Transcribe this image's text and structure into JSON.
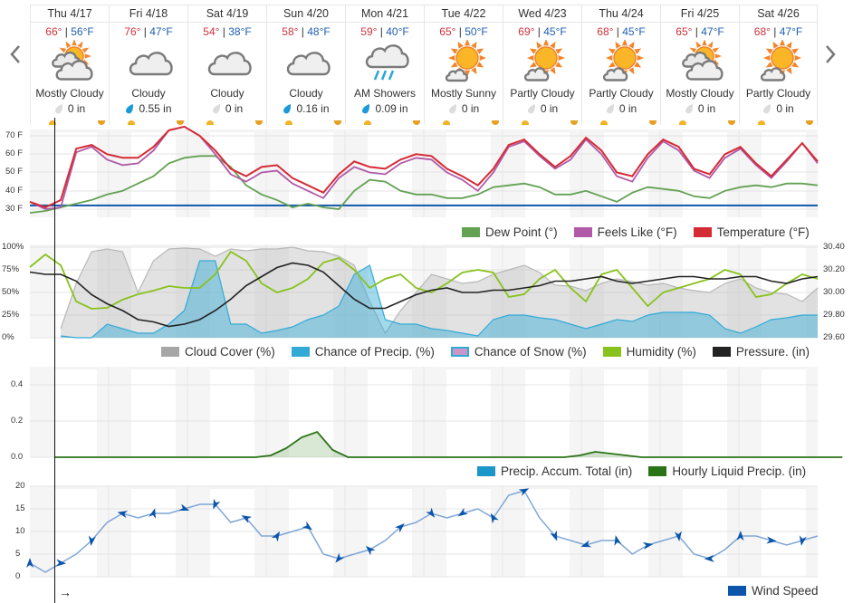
{
  "navigation": {
    "prev_icon": "chevron-left-icon",
    "next_icon": "chevron-right-icon"
  },
  "days": [
    {
      "label": "Thu 4/17",
      "hi": "66°",
      "lo": "56°F",
      "icon": "mostly-cloudy-icon",
      "condition": "Mostly Cloudy",
      "precip": "0 in",
      "precip_active": false
    },
    {
      "label": "Fri 4/18",
      "hi": "76°",
      "lo": "47°F",
      "icon": "cloudy-icon",
      "condition": "Cloudy",
      "precip": "0.55 in",
      "precip_active": true
    },
    {
      "label": "Sat 4/19",
      "hi": "54°",
      "lo": "38°F",
      "icon": "cloudy-icon",
      "condition": "Cloudy",
      "precip": "0 in",
      "precip_active": false
    },
    {
      "label": "Sun 4/20",
      "hi": "58°",
      "lo": "48°F",
      "icon": "cloudy-icon",
      "condition": "Cloudy",
      "precip": "0.16 in",
      "precip_active": true
    },
    {
      "label": "Mon 4/21",
      "hi": "59°",
      "lo": "40°F",
      "icon": "showers-icon",
      "condition": "AM Showers",
      "precip": "0.09 in",
      "precip_active": true
    },
    {
      "label": "Tue 4/22",
      "hi": "65°",
      "lo": "50°F",
      "icon": "mostly-sunny-icon",
      "condition": "Mostly Sunny",
      "precip": "0 in",
      "precip_active": false
    },
    {
      "label": "Wed 4/23",
      "hi": "69°",
      "lo": "45°F",
      "icon": "partly-cloudy-icon",
      "condition": "Partly Cloudy",
      "precip": "0 in",
      "precip_active": false
    },
    {
      "label": "Thu 4/24",
      "hi": "68°",
      "lo": "45°F",
      "icon": "partly-cloudy-icon",
      "condition": "Partly Cloudy",
      "precip": "0 in",
      "precip_active": false
    },
    {
      "label": "Fri 4/25",
      "hi": "65°",
      "lo": "47°F",
      "icon": "mostly-cloudy-icon",
      "condition": "Mostly Cloudy",
      "precip": "0 in",
      "precip_active": false
    },
    {
      "label": "Sat 4/26",
      "hi": "68°",
      "lo": "47°F",
      "icon": "partly-cloudy-icon",
      "condition": "Partly Cloudy",
      "precip": "0 in",
      "precip_active": false
    }
  ],
  "separator": " | ",
  "colors": {
    "temperature": "#d52b35",
    "feels_like": "#b05aa8",
    "dew_point": "#63a253",
    "freezing": "#1f5fb0",
    "cloud_cover": "#a6a6a6",
    "precip_chance": "#33aad6",
    "snow_chance": "#c996c9",
    "humidity": "#88c21c",
    "pressure": "#222222",
    "precip_accum": "#1a96c8",
    "hourly_precip": "#2a7316",
    "wind": "#0b55aa"
  },
  "now_arrow": "→",
  "chart_data": [
    {
      "type": "line",
      "title": "Temperature",
      "ylabel": "F",
      "yticks": [
        "70 F",
        "60 F",
        "50 F",
        "40 F",
        "30 F"
      ],
      "ylim": [
        25,
        75
      ],
      "x": "hourly, Thu 4/17 – Sat 4/26 (sampled every 6h)",
      "legend": [
        "Dew Point (°)",
        "Feels Like (°F)",
        "Temperature (°F)"
      ],
      "series": [
        {
          "name": "Temperature (°F)",
          "values": [
            34,
            31,
            35,
            63,
            65,
            60,
            58,
            58,
            64,
            73,
            75,
            70,
            62,
            52,
            48,
            53,
            54,
            47,
            43,
            39,
            49,
            56,
            53,
            52,
            57,
            60,
            59,
            52,
            48,
            43,
            52,
            65,
            68,
            60,
            53,
            59,
            69,
            62,
            50,
            48,
            60,
            68,
            64,
            52,
            49,
            60,
            64,
            55,
            48,
            57,
            66,
            56
          ]
        },
        {
          "name": "Feels Like (°F)",
          "values": [
            34,
            30,
            31,
            61,
            64,
            57,
            54,
            55,
            62,
            73,
            75,
            70,
            60,
            49,
            45,
            50,
            51,
            44,
            40,
            36,
            47,
            53,
            50,
            49,
            55,
            58,
            57,
            50,
            46,
            40,
            50,
            64,
            67,
            59,
            52,
            57,
            68,
            60,
            48,
            45,
            58,
            67,
            62,
            51,
            47,
            58,
            63,
            54,
            47,
            56,
            66,
            55
          ]
        },
        {
          "name": "Dew Point (°)",
          "values": [
            28,
            29,
            31,
            33,
            35,
            38,
            40,
            44,
            48,
            55,
            58,
            59,
            59,
            53,
            43,
            38,
            35,
            31,
            33,
            31,
            30,
            40,
            46,
            45,
            40,
            38,
            38,
            36,
            36,
            38,
            42,
            43,
            44,
            42,
            38,
            38,
            40,
            37,
            34,
            39,
            42,
            41,
            40,
            37,
            36,
            40,
            42,
            43,
            42,
            44,
            44,
            43
          ]
        },
        {
          "name": "Freezing (32°F)",
          "values": [
            32
          ]
        }
      ]
    },
    {
      "type": "area",
      "title": "Cloud / Precip / Humidity / Pressure",
      "yticks_left": [
        "100%",
        "75%",
        "50%",
        "25%",
        "0%"
      ],
      "yticks_right": [
        "30.40",
        "30.20",
        "30.00",
        "29.80",
        "29.60"
      ],
      "ylim_left": [
        0,
        100
      ],
      "ylim_right": [
        29.6,
        30.4
      ],
      "legend": [
        "Cloud Cover (%)",
        "Chance of Precip. (%)",
        "Chance of Snow (%)",
        "Humidity (%)",
        "Pressure. (in)"
      ],
      "series": [
        {
          "name": "Cloud Cover (%)",
          "values": [
            0,
            0,
            10,
            60,
            95,
            98,
            95,
            50,
            85,
            98,
            99,
            98,
            90,
            98,
            96,
            98,
            98,
            100,
            96,
            95,
            90,
            80,
            40,
            5,
            30,
            50,
            70,
            65,
            60,
            62,
            70,
            75,
            80,
            72,
            58,
            57,
            52,
            60,
            65,
            62,
            58,
            60,
            55,
            52,
            50,
            60,
            65,
            55,
            50,
            48,
            40,
            55
          ]
        },
        {
          "name": "Chance of Precip. (%)",
          "values": [
            0,
            0,
            2,
            0,
            0,
            15,
            10,
            5,
            5,
            15,
            30,
            85,
            85,
            15,
            15,
            5,
            8,
            12,
            20,
            25,
            35,
            70,
            80,
            20,
            15,
            15,
            10,
            8,
            5,
            2,
            20,
            25,
            25,
            22,
            20,
            15,
            10,
            15,
            20,
            18,
            25,
            28,
            28,
            28,
            25,
            10,
            5,
            12,
            20,
            22,
            25,
            25
          ]
        },
        {
          "name": "Humidity (%)",
          "values": [
            78,
            92,
            80,
            40,
            32,
            33,
            42,
            48,
            52,
            57,
            55,
            55,
            70,
            95,
            85,
            60,
            50,
            55,
            65,
            83,
            88,
            75,
            55,
            65,
            70,
            55,
            50,
            60,
            72,
            75,
            72,
            45,
            48,
            65,
            75,
            55,
            40,
            70,
            75,
            55,
            35,
            50,
            55,
            60,
            65,
            75,
            70,
            45,
            48,
            60,
            70,
            65
          ]
        },
        {
          "name": "Pressure. (in)",
          "values": [
            30.18,
            30.16,
            30.16,
            30.1,
            29.98,
            29.9,
            29.84,
            29.76,
            29.74,
            29.7,
            29.72,
            29.76,
            29.84,
            29.94,
            30.06,
            30.14,
            30.22,
            30.26,
            30.24,
            30.18,
            30.06,
            29.94,
            29.86,
            29.86,
            29.92,
            29.98,
            30.02,
            30.04,
            30.0,
            30.0,
            30.02,
            30.02,
            30.04,
            30.06,
            30.1,
            30.1,
            30.12,
            30.14,
            30.1,
            30.08,
            30.1,
            30.12,
            30.14,
            30.14,
            30.12,
            30.12,
            30.14,
            30.14,
            30.1,
            30.08,
            30.12,
            30.14
          ]
        },
        {
          "name": "Chance of Snow (%)",
          "values": [
            0
          ]
        }
      ]
    },
    {
      "type": "area",
      "title": "Precipitation",
      "yticks": [
        "0.4",
        "0.2",
        "0.0"
      ],
      "ylim": [
        0,
        0.5
      ],
      "legend": [
        "Precip. Accum. Total (in)",
        "Hourly Liquid Precip. (in)"
      ],
      "series": [
        {
          "name": "Hourly Liquid Precip. (in)",
          "points": [
            [
              0,
              0
            ],
            [
              13,
              0
            ],
            [
              14,
              0.01
            ],
            [
              15,
              0.05
            ],
            [
              16,
              0.11
            ],
            [
              17,
              0.14
            ],
            [
              18,
              0.04
            ],
            [
              19,
              0
            ],
            [
              33,
              0
            ],
            [
              34,
              0.01
            ],
            [
              35,
              0.03
            ],
            [
              36,
              0.02
            ],
            [
              37,
              0.01
            ],
            [
              38,
              0
            ],
            [
              51,
              0
            ]
          ]
        },
        {
          "name": "Precip. Accum. Total (in)",
          "values": []
        }
      ]
    },
    {
      "type": "line",
      "title": "Wind",
      "yticks": [
        "20",
        "15",
        "10",
        "5",
        "0"
      ],
      "ylim": [
        0,
        20
      ],
      "legend": [
        "Wind Speed"
      ],
      "series": [
        {
          "name": "Wind Speed",
          "values": [
            3,
            1,
            3,
            5,
            8,
            12,
            14,
            13,
            14,
            14,
            15,
            16,
            16,
            12,
            13,
            9,
            9,
            10,
            11,
            5,
            4,
            5,
            6,
            8,
            11,
            12,
            14,
            13,
            14,
            15,
            13,
            18,
            19,
            13,
            9,
            8,
            7,
            8,
            8,
            5,
            7,
            8,
            9,
            5,
            4,
            6,
            9,
            9,
            8,
            7,
            8,
            9
          ]
        }
      ]
    }
  ]
}
